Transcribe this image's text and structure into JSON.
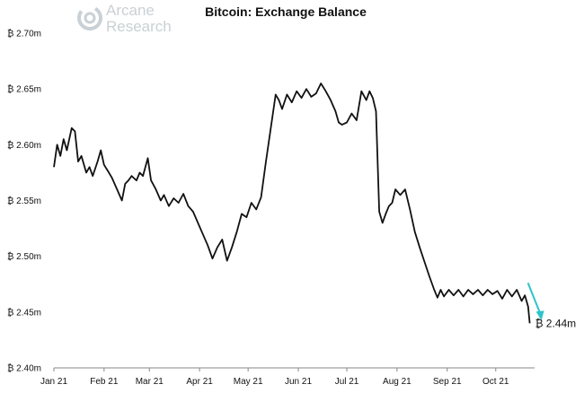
{
  "logo": {
    "line1": "Arcane",
    "line2": "Research",
    "icon": "arcane-logo-icon",
    "color": "#c9d1d6"
  },
  "chart_data": {
    "type": "line",
    "title": "Bitcoin: Exchange Balance",
    "xlabel": "",
    "ylabel": "",
    "ylim": [
      2.4,
      2.7
    ],
    "y_ticks": [
      2.4,
      2.45,
      2.5,
      2.55,
      2.6,
      2.65,
      2.7
    ],
    "y_tick_labels": [
      "₿ 2.40m",
      "₿ 2.45m",
      "₿ 2.50m",
      "₿ 2.55m",
      "₿ 2.60m",
      "₿ 2.65m",
      "₿ 2.70m"
    ],
    "x_tick_labels": [
      "Jan 21",
      "Feb 21",
      "Mar 21",
      "Apr 21",
      "May 21",
      "Jun 21",
      "Jul 21",
      "Aug 21",
      "Sep 21",
      "Oct 21"
    ],
    "x_tick_dates": [
      "2021-01-01",
      "2021-02-01",
      "2021-03-01",
      "2021-04-01",
      "2021-05-01",
      "2021-06-01",
      "2021-07-01",
      "2021-08-01",
      "2021-09-01",
      "2021-10-01"
    ],
    "x_range": [
      "2021-01-01",
      "2021-10-25"
    ],
    "grid": false,
    "legend": "none",
    "line_color": "#111111",
    "series": [
      {
        "x": [
          "2021-01-01",
          "2021-01-03",
          "2021-01-05",
          "2021-01-07",
          "2021-01-09",
          "2021-01-12",
          "2021-01-14",
          "2021-01-16",
          "2021-01-18",
          "2021-01-21",
          "2021-01-23",
          "2021-01-25",
          "2021-01-28",
          "2021-01-30",
          "2021-02-01",
          "2021-02-04",
          "2021-02-06",
          "2021-02-09",
          "2021-02-12",
          "2021-02-14",
          "2021-02-16",
          "2021-02-18",
          "2021-02-21",
          "2021-02-23",
          "2021-02-25",
          "2021-02-28",
          "2021-03-02",
          "2021-03-05",
          "2021-03-08",
          "2021-03-10",
          "2021-03-13",
          "2021-03-16",
          "2021-03-19",
          "2021-03-22",
          "2021-03-25",
          "2021-03-28",
          "2021-03-31",
          "2021-04-03",
          "2021-04-06",
          "2021-04-09",
          "2021-04-12",
          "2021-04-15",
          "2021-04-18",
          "2021-04-21",
          "2021-04-24",
          "2021-04-27",
          "2021-04-30",
          "2021-05-03",
          "2021-05-06",
          "2021-05-09",
          "2021-05-12",
          "2021-05-14",
          "2021-05-16",
          "2021-05-18",
          "2021-05-20",
          "2021-05-22",
          "2021-05-25",
          "2021-05-28",
          "2021-05-31",
          "2021-06-03",
          "2021-06-06",
          "2021-06-09",
          "2021-06-12",
          "2021-06-15",
          "2021-06-18",
          "2021-06-21",
          "2021-06-24",
          "2021-06-26",
          "2021-06-28",
          "2021-07-01",
          "2021-07-04",
          "2021-07-07",
          "2021-07-10",
          "2021-07-13",
          "2021-07-15",
          "2021-07-17",
          "2021-07-19",
          "2021-07-21",
          "2021-07-23",
          "2021-07-25",
          "2021-07-27",
          "2021-07-29",
          "2021-07-31",
          "2021-08-03",
          "2021-08-06",
          "2021-08-09",
          "2021-08-12",
          "2021-08-15",
          "2021-08-18",
          "2021-08-21",
          "2021-08-24",
          "2021-08-26",
          "2021-08-28",
          "2021-08-30",
          "2021-09-02",
          "2021-09-05",
          "2021-09-08",
          "2021-09-11",
          "2021-09-14",
          "2021-09-17",
          "2021-09-20",
          "2021-09-23",
          "2021-09-26",
          "2021-09-29",
          "2021-10-02",
          "2021-10-05",
          "2021-10-08",
          "2021-10-11",
          "2021-10-14",
          "2021-10-17",
          "2021-10-19",
          "2021-10-21",
          "2021-10-22"
        ],
        "values": [
          2.58,
          2.6,
          2.59,
          2.605,
          2.595,
          2.615,
          2.612,
          2.585,
          2.59,
          2.575,
          2.58,
          2.572,
          2.585,
          2.595,
          2.582,
          2.575,
          2.57,
          2.56,
          2.55,
          2.565,
          2.568,
          2.572,
          2.568,
          2.575,
          2.572,
          2.588,
          2.568,
          2.56,
          2.55,
          2.555,
          2.545,
          2.552,
          2.548,
          2.556,
          2.545,
          2.54,
          2.53,
          2.52,
          2.51,
          2.498,
          2.508,
          2.515,
          2.496,
          2.508,
          2.522,
          2.538,
          2.535,
          2.548,
          2.542,
          2.553,
          2.585,
          2.605,
          2.625,
          2.645,
          2.64,
          2.632,
          2.645,
          2.638,
          2.648,
          2.642,
          2.65,
          2.643,
          2.646,
          2.655,
          2.648,
          2.64,
          2.63,
          2.62,
          2.618,
          2.62,
          2.628,
          2.622,
          2.648,
          2.64,
          2.648,
          2.642,
          2.63,
          2.54,
          2.53,
          2.538,
          2.545,
          2.548,
          2.56,
          2.555,
          2.56,
          2.542,
          2.522,
          2.508,
          2.495,
          2.482,
          2.47,
          2.463,
          2.47,
          2.464,
          2.47,
          2.465,
          2.47,
          2.464,
          2.47,
          2.466,
          2.47,
          2.465,
          2.47,
          2.466,
          2.469,
          2.462,
          2.47,
          2.464,
          2.47,
          2.46,
          2.465,
          2.455,
          2.44
        ]
      }
    ],
    "annotation": {
      "text": "₿ 2.44m",
      "value": 2.44,
      "arrow_color": "#2ec4c9"
    }
  }
}
